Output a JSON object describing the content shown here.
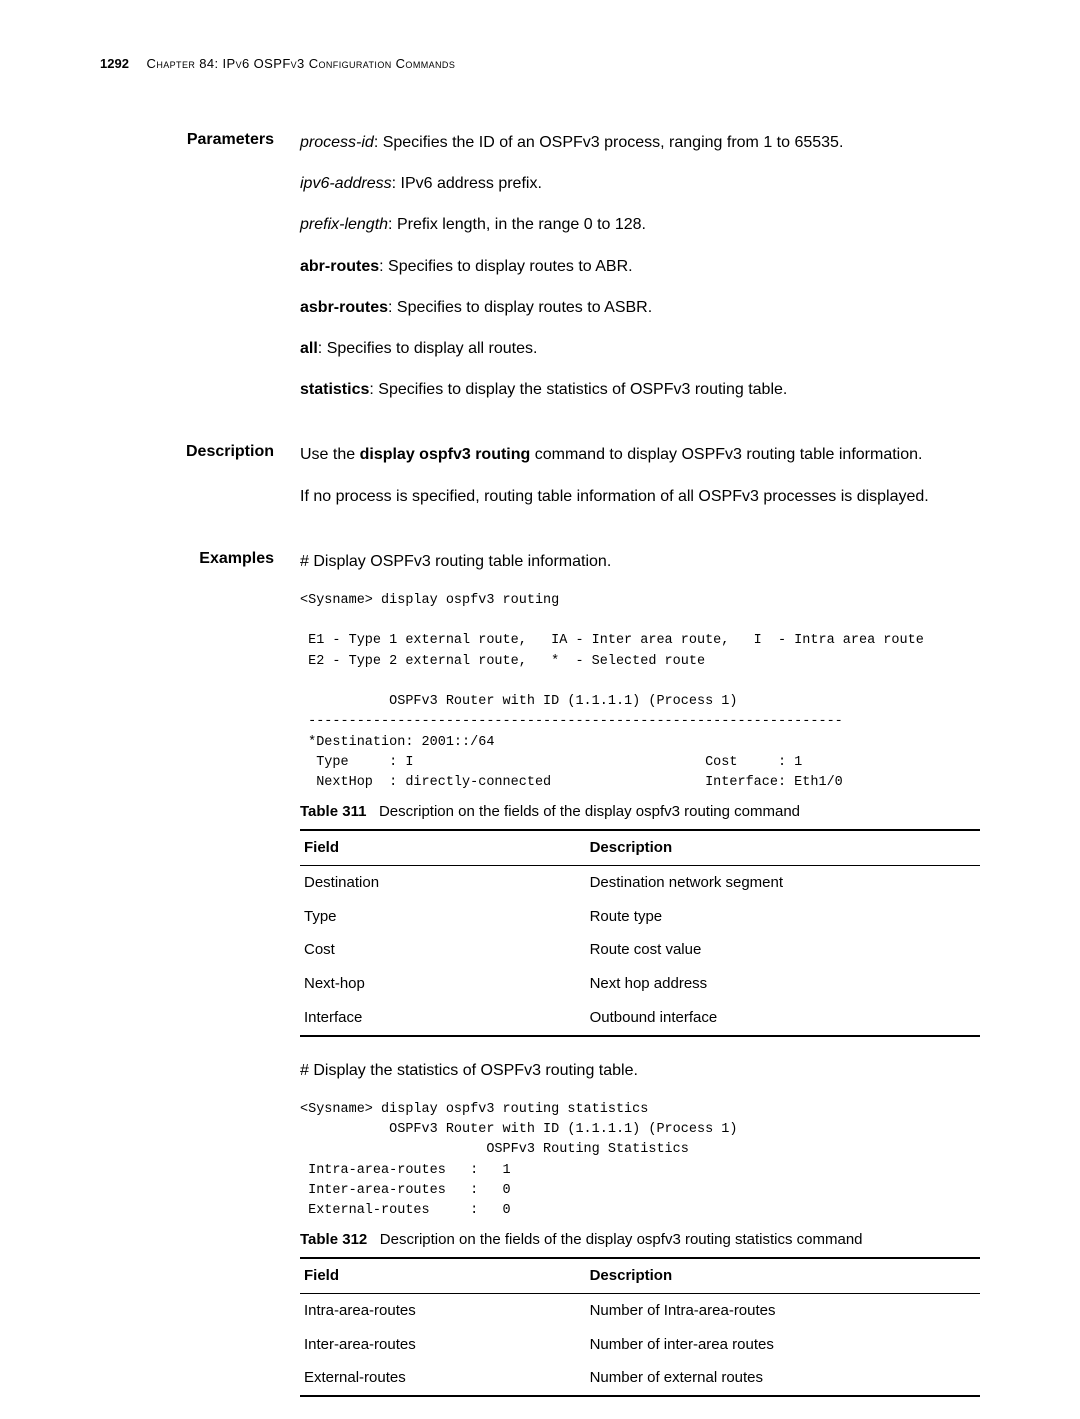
{
  "header": {
    "page_number": "1292",
    "chapter": "Chapter 84: IPv6 OSPFv3 Configuration Commands"
  },
  "parameters": {
    "label": "Parameters",
    "items": [
      {
        "term": "process-id",
        "term_style": "italic",
        "desc": ": Specifies the ID of an OSPFv3 process, ranging from 1 to 65535."
      },
      {
        "term": "ipv6-address",
        "term_style": "italic",
        "desc": ": IPv6 address prefix."
      },
      {
        "term": "prefix-length",
        "term_style": "italic",
        "desc": ": Prefix length, in the range 0 to 128."
      },
      {
        "term": "abr-routes",
        "term_style": "bold",
        "desc": ": Specifies to display routes to ABR."
      },
      {
        "term": "asbr-routes",
        "term_style": "bold",
        "desc": ": Specifies to display routes to ASBR."
      },
      {
        "term": "all",
        "term_style": "bold",
        "desc": ": Specifies to display all routes."
      },
      {
        "term": "statistics",
        "term_style": "bold",
        "desc": ": Specifies to display the statistics of OSPFv3 routing table."
      }
    ]
  },
  "description": {
    "label": "Description",
    "para1_pre": "Use the ",
    "para1_cmd": "display ospfv3 routing",
    "para1_post": " command to display OSPFv3 routing table information.",
    "para2": "If no process is specified, routing table information of all OSPFv3 processes is displayed."
  },
  "examples": {
    "label": "Examples",
    "intro1": "# Display OSPFv3 routing table information.",
    "code1": "<Sysname> display ospfv3 routing\n\n E1 - Type 1 external route,   IA - Inter area route,   I  - Intra area route\n E2 - Type 2 external route,   *  - Selected route\n\n           OSPFv3 Router with ID (1.1.1.1) (Process 1)\n ------------------------------------------------------------------\n *Destination: 2001::/64\n  Type     : I                                    Cost     : 1\n  NextHop  : directly-connected                   Interface: Eth1/0",
    "table1": {
      "caption_label": "Table 311",
      "caption_text": "Description on the fields of the display ospfv3 routing command",
      "col1": "Field",
      "col2": "Description",
      "rows": [
        {
          "f": "Destination",
          "d": "Destination network segment"
        },
        {
          "f": "Type",
          "d": "Route type"
        },
        {
          "f": "Cost",
          "d": "Route cost value"
        },
        {
          "f": "Next-hop",
          "d": "Next hop address"
        },
        {
          "f": "Interface",
          "d": "Outbound interface"
        }
      ]
    },
    "intro2": "# Display the statistics of OSPFv3 routing table.",
    "code2": "<Sysname> display ospfv3 routing statistics\n           OSPFv3 Router with ID (1.1.1.1) (Process 1)\n                       OSPFv3 Routing Statistics\n Intra-area-routes   :   1\n Inter-area-routes   :   0\n External-routes     :   0",
    "table2": {
      "caption_label": "Table 312",
      "caption_text": "Description on the fields of the display ospfv3 routing statistics command",
      "col1": "Field",
      "col2": "Description",
      "rows": [
        {
          "f": "Intra-area-routes",
          "d": "Number of Intra-area-routes"
        },
        {
          "f": "Inter-area-routes",
          "d": "Number of inter-area routes"
        },
        {
          "f": "External-routes",
          "d": "Number of external routes"
        }
      ]
    }
  }
}
